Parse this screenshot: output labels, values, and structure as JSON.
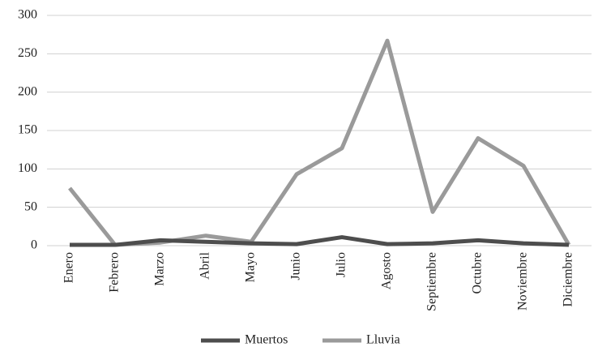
{
  "chart_data": {
    "type": "line",
    "categories": [
      "Enero",
      "Febrero",
      "Marzo",
      "Abril",
      "Mayo",
      "Junio",
      "Julio",
      "Agosto",
      "Septiembre",
      "Octubre",
      "Noviembre",
      "Diciembre"
    ],
    "series": [
      {
        "name": "Muertos",
        "color": "#4d4d4d",
        "values": [
          1,
          1,
          7,
          5,
          3,
          2,
          11,
          2,
          3,
          7,
          3,
          1
        ]
      },
      {
        "name": "Lluvia",
        "color": "#9a9a9a",
        "values": [
          75,
          1,
          4,
          13,
          5,
          93,
          127,
          267,
          44,
          140,
          104,
          1
        ]
      }
    ],
    "ylim": [
      0,
      300
    ],
    "yticks": [
      0,
      50,
      100,
      150,
      200,
      250,
      300
    ],
    "grid": true,
    "legend": "bottom"
  }
}
